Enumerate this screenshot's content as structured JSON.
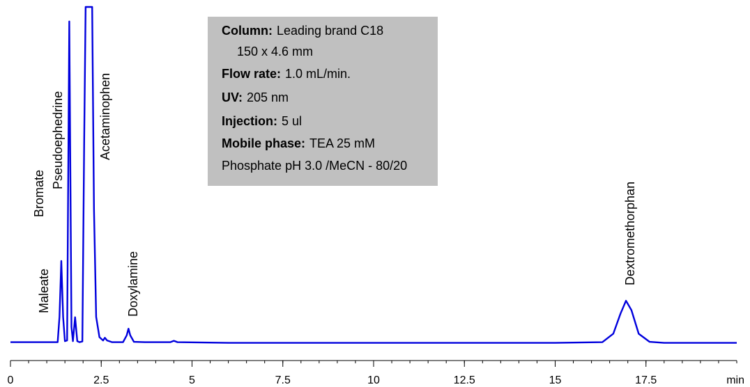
{
  "chart_data": {
    "type": "line",
    "xlabel": "min",
    "x": [
      0,
      1.3,
      1.35,
      1.4,
      1.45,
      1.5,
      1.56,
      1.62,
      1.68,
      1.72,
      1.78,
      1.84,
      1.9,
      1.98,
      2.03,
      2.07,
      2.25,
      2.3,
      2.36,
      2.45,
      2.55,
      2.6,
      2.66,
      2.8,
      3.1,
      3.2,
      3.25,
      3.3,
      3.4,
      3.7,
      4.4,
      4.5,
      4.6,
      6,
      10,
      15,
      16.3,
      16.6,
      16.8,
      16.95,
      17.1,
      17.3,
      17.6,
      18,
      20
    ],
    "series": [
      {
        "color": "#0000dd",
        "values": [
          0.5,
          0.5,
          8,
          24.6,
          8,
          0.8,
          1,
          95.7,
          5,
          0.8,
          7.9,
          0.8,
          0.5,
          0.7,
          60,
          100,
          100,
          40,
          8,
          2,
          1,
          1.8,
          1,
          0.5,
          0.5,
          2.5,
          4.5,
          2.5,
          0.6,
          0.5,
          0.5,
          0.9,
          0.5,
          0.3,
          0.3,
          0.3,
          0.5,
          3,
          9,
          12.8,
          10,
          3,
          0.6,
          0.3,
          0.3
        ]
      }
    ],
    "xlim": [
      0,
      20
    ],
    "xticks": [
      0,
      2.5,
      5,
      7.5,
      10,
      12.5,
      15,
      17.5
    ],
    "x_minor_step": 0.5,
    "ylim": [
      0,
      100
    ],
    "annotations": [
      "Maleate",
      "Bromate",
      "Pseudoephedrine",
      "Acetaminophen",
      "Doxylamine",
      "Dextromethorphan"
    ],
    "info_box": [
      {
        "label": "Column:",
        "text": "Leading brand C18"
      },
      {
        "text": "150 x 4.6 mm"
      },
      {
        "label": "Flow rate:",
        "text": "1.0 mL/min."
      },
      {
        "label": "UV:",
        "text": "205 nm"
      },
      {
        "label": "Injection:",
        "text": "5 ul"
      },
      {
        "label": "Mobile phase:",
        "text": "TEA 25 mM"
      },
      {
        "text": "Phosphate pH 3.0 /MeCN - 80/20"
      }
    ]
  }
}
